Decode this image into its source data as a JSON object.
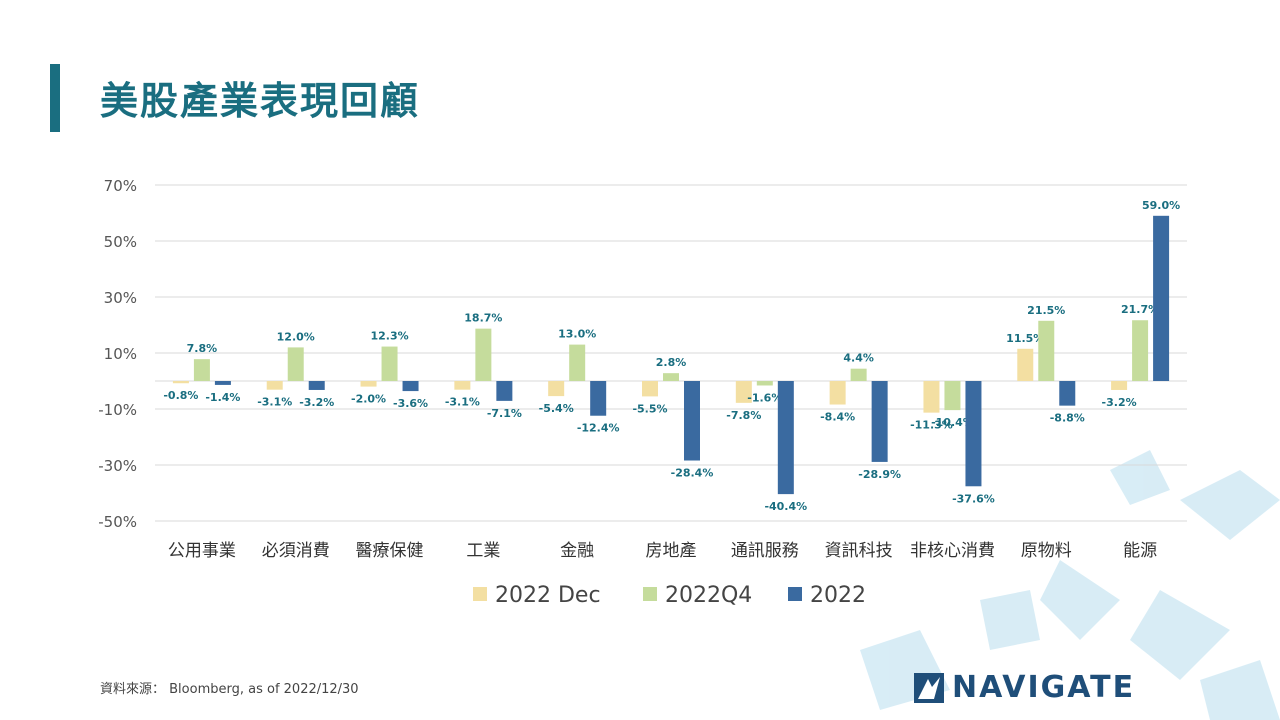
{
  "page": {
    "title": "美股產業表現回顧",
    "source": "資料來源： Bloomberg, as of 2022/12/30",
    "logo_text": "NAVIGATE"
  },
  "colors": {
    "title": "#1a6e80",
    "series": [
      "#f3dfa2",
      "#c5dc9c",
      "#3a6aa0"
    ],
    "label_text": "#1a6e80",
    "decor": "#d4ebf5"
  },
  "chart_data": {
    "type": "bar",
    "categories": [
      "公用事業",
      "必須消費",
      "醫療保健",
      "工業",
      "金融",
      "房地產",
      "通訊服務",
      "資訊科技",
      "非核心消費",
      "原物料",
      "能源"
    ],
    "series": [
      {
        "name": "2022 Dec",
        "values": [
          -0.8,
          -3.1,
          -2.0,
          -3.1,
          -5.4,
          -5.5,
          -7.8,
          -8.4,
          -11.3,
          11.5,
          -3.2
        ]
      },
      {
        "name": "2022Q4",
        "values": [
          7.8,
          12.0,
          12.3,
          18.7,
          13.0,
          2.8,
          -1.6,
          4.4,
          -10.4,
          21.5,
          21.7
        ]
      },
      {
        "name": "2022",
        "values": [
          -1.4,
          -3.2,
          -3.6,
          -7.1,
          -12.4,
          -28.4,
          -40.4,
          -28.9,
          -37.6,
          -8.8,
          59.0
        ]
      }
    ],
    "yticks": [
      70,
      50,
      30,
      10,
      -10,
      -30,
      -50
    ],
    "ylim": [
      -50,
      70
    ],
    "value_suffix": "%",
    "grid": true,
    "legend_position": "bottom"
  }
}
